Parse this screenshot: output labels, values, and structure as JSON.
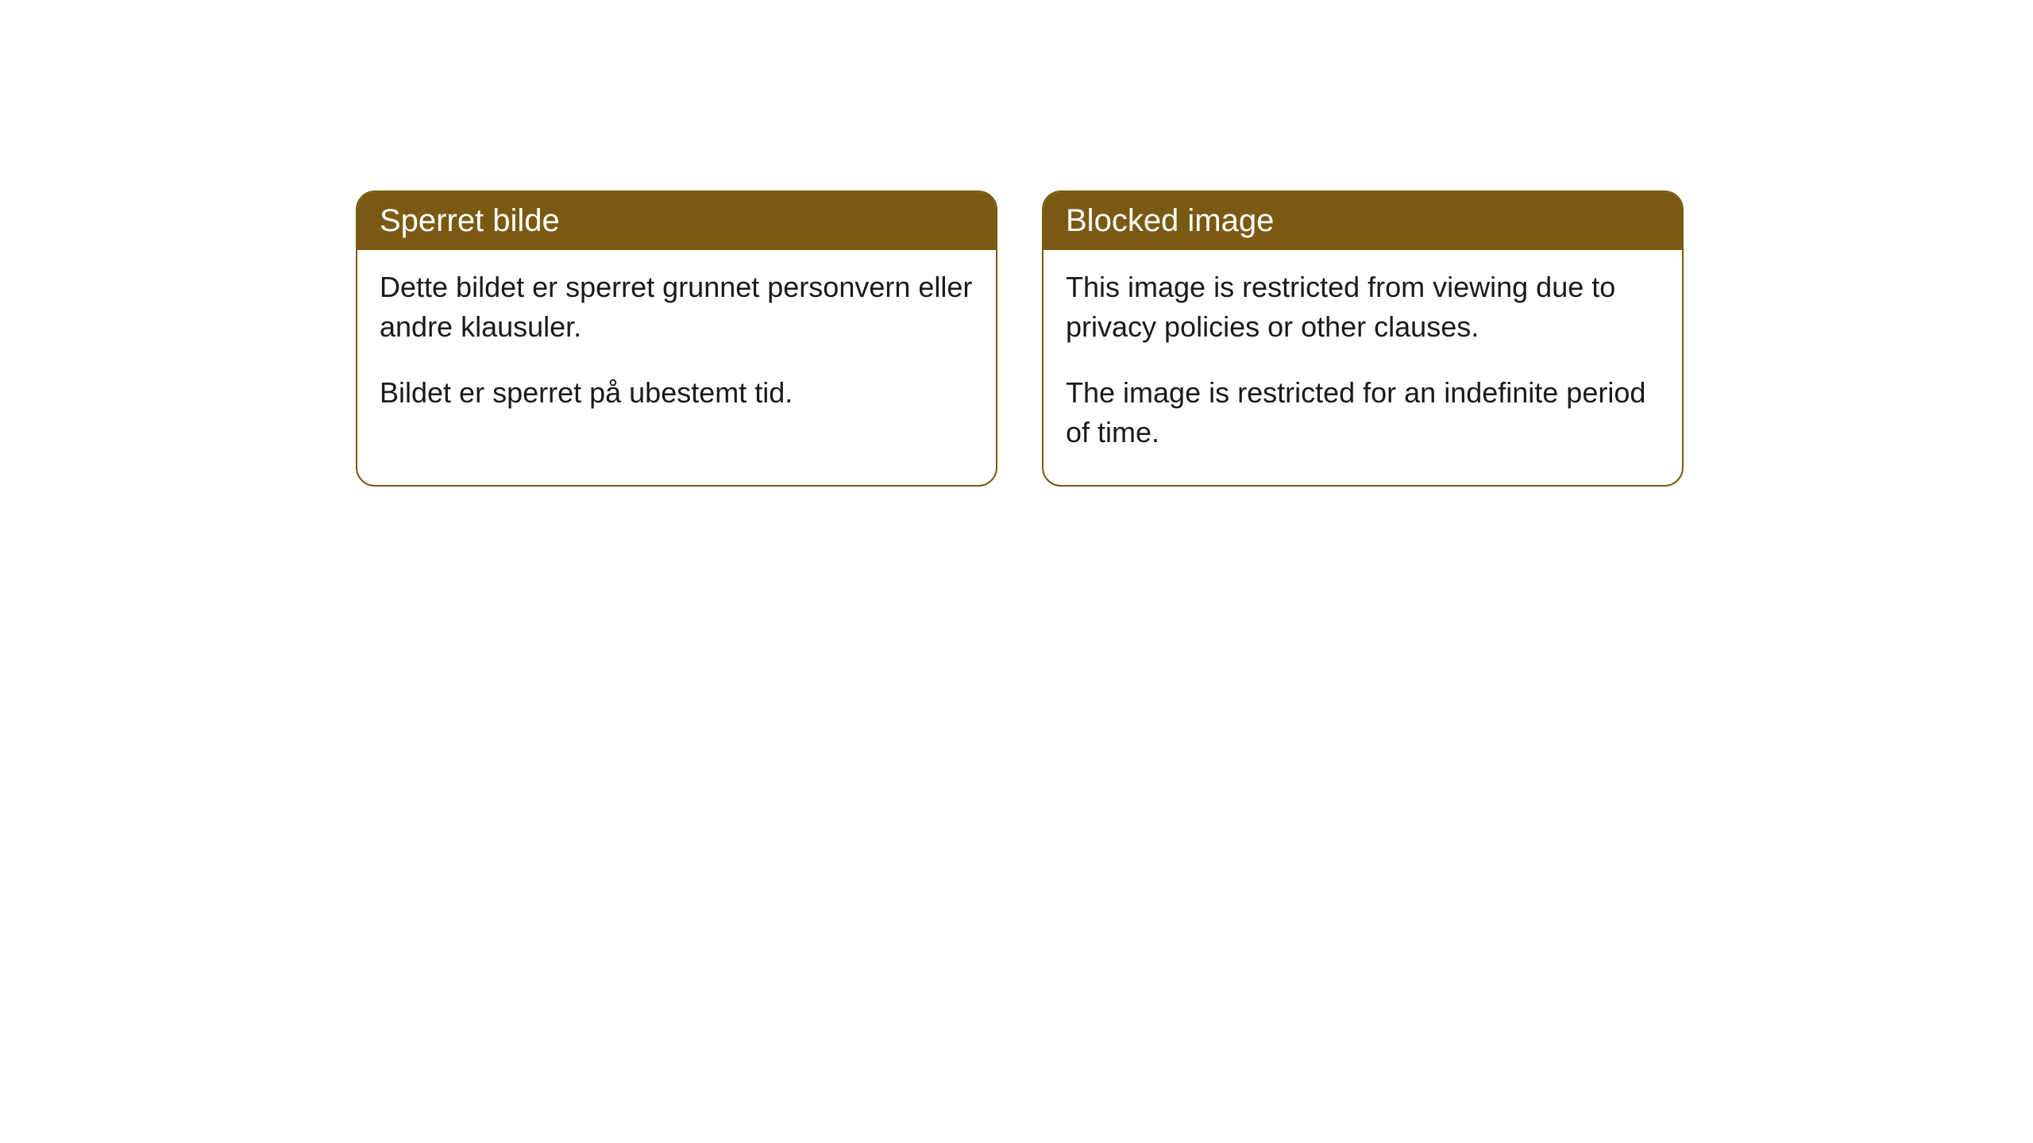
{
  "cards": [
    {
      "header": "Sperret bilde",
      "paragraph1": "Dette bildet er sperret grunnet personvern eller andre klausuler.",
      "paragraph2": "Bildet er sperret på ubestemt tid."
    },
    {
      "header": "Blocked image",
      "paragraph1": "This image is restricted from viewing due to privacy policies or other clauses.",
      "paragraph2": "The image is restricted for an indefinite period of time."
    }
  ],
  "styling": {
    "header_background": "#7a5a12",
    "header_text_color": "#ffffff",
    "card_border_color": "#7a5a12",
    "card_background": "#ffffff",
    "body_text_color": "#1a1a1a",
    "page_background": "#ffffff",
    "border_radius": 24,
    "header_fontsize": 40,
    "body_fontsize": 36
  }
}
